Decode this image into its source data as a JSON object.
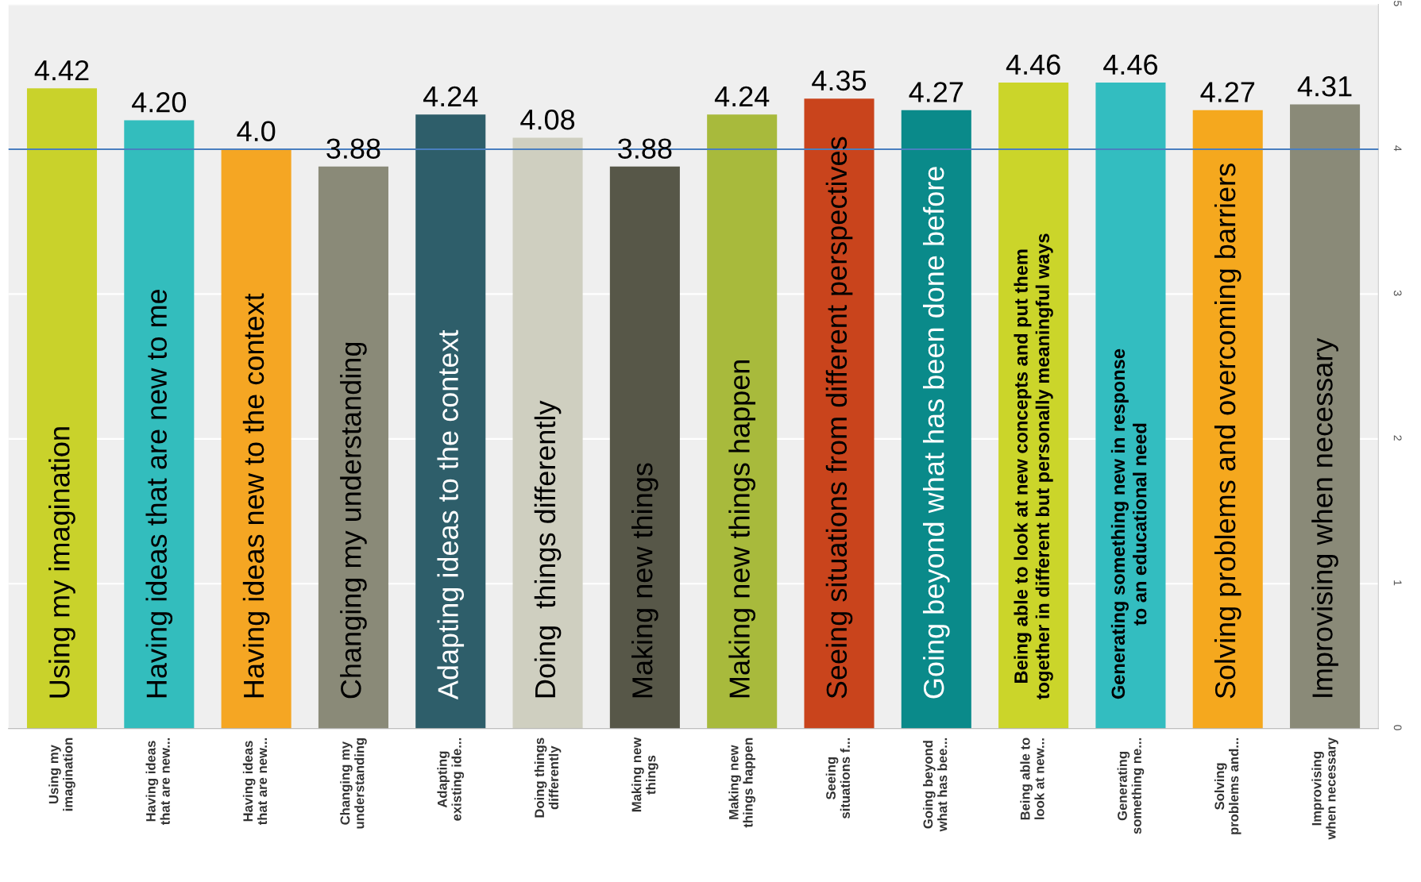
{
  "chart_data": {
    "type": "bar",
    "categories": [
      "Using my\nimagination",
      "Having ideas\nthat are new...",
      "Having ideas\nthat are new...",
      "Changing my\nunderstanding",
      "Adapting\nexisting ide...",
      "Doing things\ndifferently",
      "Making new\nthings",
      "Making new\nthings happen",
      "Seeing\nsituations f...",
      "Going beyond\nwhat has bee...",
      "Being able to\nlook at new...",
      "Generating\nsomething ne...",
      "Solving\nproblems and...",
      "Improvising\nwhen necessary"
    ],
    "values": [
      4.42,
      4.2,
      4.0,
      3.88,
      4.24,
      4.08,
      3.88,
      4.24,
      4.35,
      4.27,
      4.46,
      4.46,
      4.27,
      4.31
    ],
    "value_labels": [
      "4.42",
      "4.20",
      "4.0",
      "3.88",
      "4.24",
      "4.08",
      "3.88",
      "4.24",
      "4.35",
      "4.27",
      "4.46",
      "4.46",
      "4.27",
      "4.31"
    ],
    "colors": [
      "#c9d22b",
      "#33bdbd",
      "#f5a623",
      "#8a8a78",
      "#2e5e6a",
      "#cfcfc0",
      "#575748",
      "#a8ba3c",
      "#c9441c",
      "#0a8a8a",
      "#cbd52a",
      "#33bdc0",
      "#f5a81e",
      "#8a8a78"
    ],
    "annotations": [
      "Using my imagination",
      "Having ideas that are new to me",
      "Having ideas new to the context",
      "Changing my understanding",
      "Adapting ideas to the context",
      "Doing  things differently",
      "Making new things",
      "Making new things happen",
      "Seeing situations from different perspectives",
      "Going beyond what has been done before",
      "Being able to look at new concepts and put them\ntogether in different but personally meaningful ways",
      "Generating something new in response\nto an educational need",
      "Solving problems and overcoming barriers",
      "Improvising when necessary"
    ],
    "ylim": [
      0,
      5
    ],
    "yticks": [
      0,
      1,
      2,
      3,
      4,
      5
    ],
    "grid": "y",
    "ref_lines": [
      {
        "axis": "y",
        "value": 4,
        "color": "#4a7fc0"
      }
    ]
  }
}
